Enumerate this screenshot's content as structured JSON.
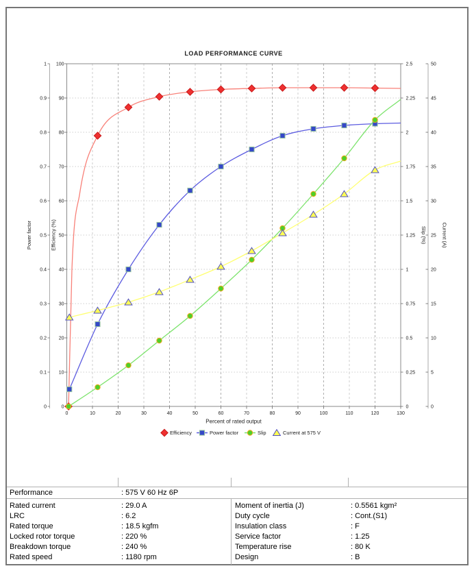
{
  "chart_data": {
    "type": "line",
    "title": "LOAD PERFORMANCE CURVE",
    "x_axis": {
      "label": "Percent of rated output",
      "min": 0,
      "max": 130,
      "ticks": [
        "0",
        "10",
        "20",
        "30",
        "40",
        "50",
        "60",
        "70",
        "80",
        "90",
        "100",
        "110",
        "120",
        "130"
      ]
    },
    "axes": {
      "power_factor": {
        "label": "Power factor",
        "min": 0,
        "max": 1,
        "ticks": [
          "1",
          "0.9",
          "0.8",
          "0.7",
          "0.6",
          "0.5",
          "0.4",
          "0.3",
          "0.2",
          "0.1",
          "0"
        ]
      },
      "efficiency": {
        "label": "Efficiency (%)",
        "min": 0,
        "max": 100,
        "ticks": [
          "100",
          "90",
          "80",
          "70",
          "60",
          "50",
          "40",
          "30",
          "20",
          "10",
          "0"
        ]
      },
      "slip": {
        "label": "Slip (%)",
        "min": 0,
        "max": 2.5,
        "ticks": [
          "2.5",
          "2.25",
          "2",
          "1.75",
          "1.5",
          "1.25",
          "1",
          "0.75",
          "0.5",
          "0.25",
          "0"
        ]
      },
      "current": {
        "label": "Current (A)",
        "min": 0,
        "max": 50,
        "ticks": [
          "50",
          "45",
          "40",
          "35",
          "30",
          "25",
          "20",
          "15",
          "10",
          "5",
          "0"
        ]
      }
    },
    "series": [
      {
        "name": "Efficiency",
        "axis": "efficiency",
        "marker": "diamond",
        "x": [
          0.7,
          12,
          24,
          36,
          48,
          60,
          72,
          84,
          96,
          108,
          120
        ],
        "y": [
          0,
          79,
          87.3,
          90.4,
          91.8,
          92.5,
          92.8,
          93,
          93,
          93,
          92.9
        ],
        "shape_points": [
          [
            2,
            40
          ],
          [
            5,
            62
          ]
        ],
        "line_end": [
          130,
          92.8
        ],
        "line_color": "#f88078",
        "fill": "#ee3030",
        "edge": "#c81818"
      },
      {
        "name": "Power factor",
        "axis": "power_factor",
        "marker": "square",
        "x": [
          1,
          12,
          24,
          36,
          48,
          60,
          72,
          84,
          96,
          108,
          120
        ],
        "y": [
          0.05,
          0.24,
          0.4,
          0.53,
          0.63,
          0.7,
          0.75,
          0.79,
          0.81,
          0.82,
          0.825
        ],
        "shape_points": [],
        "line_end": [
          130,
          0.827
        ],
        "line_color": "#5b5be0",
        "fill": "#3548c8",
        "edge": "#9cc8a0"
      },
      {
        "name": "Slip",
        "axis": "slip",
        "marker": "circle",
        "x": [
          0.7,
          12,
          24,
          36,
          48,
          60,
          72,
          84,
          96,
          108,
          120
        ],
        "y": [
          0,
          0.14,
          0.3,
          0.48,
          0.66,
          0.86,
          1.07,
          1.3,
          1.55,
          1.81,
          2.09
        ],
        "shape_points": [],
        "line_end": [
          130,
          2.24
        ],
        "line_color": "#7be36b",
        "fill": "#4ed02a",
        "edge": "#f0a81c"
      },
      {
        "name": "Current at 575 V",
        "axis": "current",
        "marker": "triangle",
        "x": [
          1,
          12,
          24,
          36,
          48,
          60,
          72,
          84,
          96,
          108,
          120
        ],
        "y": [
          13,
          14,
          15.2,
          16.7,
          18.5,
          20.4,
          22.7,
          25.3,
          28,
          31,
          34.5
        ],
        "shape_points": [],
        "line_end": [
          130,
          35.8
        ],
        "line_color": "#ffff70",
        "fill": "#ffff55",
        "edge": "#5050c0"
      }
    ],
    "legend_position": "bottom"
  },
  "table": {
    "performance_label": "Performance",
    "performance_value": ": 575 V 60 Hz 6P",
    "rows": [
      {
        "l": "Rated current",
        "lv": ": 29.0 A",
        "r": "Moment of inertia (J)",
        "rv": ": 0.5561 kgm²"
      },
      {
        "l": "LRC",
        "lv": ": 6.2",
        "r": "Duty cycle",
        "rv": ": Cont.(S1)"
      },
      {
        "l": "Rated torque",
        "lv": ": 18.5 kgfm",
        "r": "Insulation class",
        "rv": ": F"
      },
      {
        "l": "Locked rotor torque",
        "lv": ": 220 %",
        "r": "Service factor",
        "rv": ": 1.25"
      },
      {
        "l": "Breakdown torque",
        "lv": ": 240 %",
        "r": "Temperature rise",
        "rv": ": 80 K"
      },
      {
        "l": "Rated speed",
        "lv": ": 1180 rpm",
        "r": "Design",
        "rv": ": B"
      }
    ]
  }
}
